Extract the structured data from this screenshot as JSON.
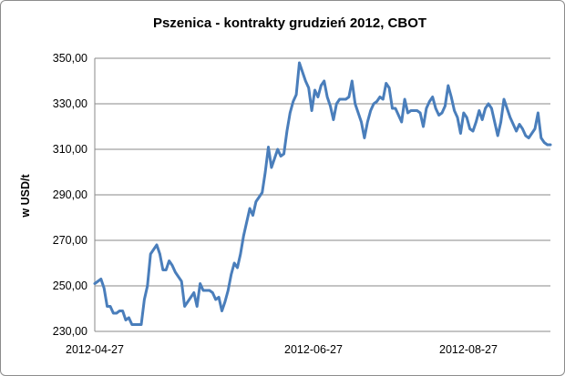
{
  "chart_data": {
    "type": "line",
    "title": "Pszenica - kontrakty grudzień 2012, CBOT",
    "ylabel": "w USD/t",
    "xlabel": "",
    "ylim": [
      230,
      350
    ],
    "yticks": [
      "230,00",
      "250,00",
      "270,00",
      "290,00",
      "310,00",
      "330,00",
      "350,00"
    ],
    "xticks": [
      "2012-04-27",
      "2012-06-27",
      "2012-08-27"
    ],
    "grid": true,
    "legend": "none",
    "line_color": "#4a7ebb",
    "series": [
      {
        "values": [
          251,
          252,
          253,
          249,
          241,
          241,
          238,
          238,
          239,
          239,
          235,
          236,
          233,
          233,
          233,
          233,
          244,
          250,
          264,
          266,
          268,
          264,
          257,
          257,
          261,
          259,
          256,
          254,
          252,
          241,
          243,
          245,
          247,
          241,
          251,
          248,
          248,
          248,
          247,
          244,
          245,
          239,
          243,
          248,
          255,
          260,
          258,
          264,
          272,
          278,
          284,
          281,
          287,
          289,
          291,
          300,
          311,
          302,
          306,
          310,
          307,
          308,
          318,
          326,
          331,
          334,
          348,
          344,
          340,
          337,
          327,
          336,
          333,
          338,
          340,
          333,
          329,
          323,
          330,
          332,
          332,
          332,
          333,
          340,
          330,
          326,
          322,
          315,
          322,
          327,
          330,
          331,
          333,
          332,
          339,
          337,
          328,
          328,
          325,
          322,
          332,
          326,
          327,
          327,
          327,
          326,
          320,
          328,
          331,
          333,
          328,
          325,
          326,
          329,
          338,
          333,
          327,
          324,
          317,
          326,
          324,
          319,
          318,
          322,
          327,
          323,
          328,
          330,
          328,
          322,
          316,
          322,
          332,
          328,
          324,
          321,
          318,
          321,
          319,
          316,
          315,
          317,
          319,
          326,
          315,
          313,
          312,
          312
        ]
      }
    ]
  }
}
